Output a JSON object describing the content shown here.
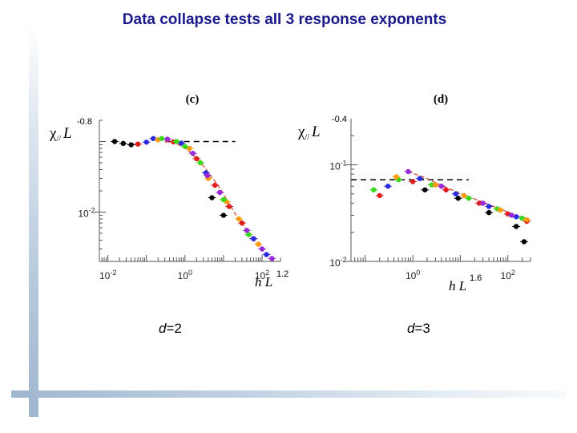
{
  "slide": {
    "title": "Data collapse tests all 3 response exponents",
    "captions": [
      {
        "var": "d",
        "rest": "=2"
      },
      {
        "var": "d",
        "rest": "=3"
      }
    ]
  },
  "chart_data": [
    {
      "type": "scatter",
      "panel_label": "(c)",
      "ylabel": "χ// L-0.8",
      "xlabel": "h L1.2",
      "x_scale": "log",
      "y_scale": "log",
      "xlim": [
        0.006,
        300
      ],
      "ylim": [
        0.002,
        0.2
      ],
      "x_ticks": [
        {
          "value": 0.01,
          "label": "10-2"
        },
        {
          "value": 1,
          "label": "100"
        },
        {
          "value": 100,
          "label": "102"
        }
      ],
      "y_ticks": [
        {
          "value": 0.01,
          "label": "10-2"
        }
      ],
      "reference_line": {
        "y": 0.1,
        "x": [
          0.3,
          20
        ],
        "style": "dashed"
      },
      "fit_curve": {
        "color": "#d04a3a",
        "points": [
          [
            0.3,
            0.1
          ],
          [
            0.6,
            0.094
          ],
          [
            1.2,
            0.075
          ],
          [
            3,
            0.045
          ],
          [
            8,
            0.022
          ],
          [
            20,
            0.0095
          ],
          [
            60,
            0.004
          ],
          [
            180,
            0.0022
          ]
        ]
      },
      "series": [
        {
          "color": "#000000",
          "points": [
            [
              0.015,
              0.1
            ],
            [
              0.025,
              0.094
            ],
            [
              0.04,
              0.09
            ],
            [
              5,
              0.016
            ],
            [
              10,
              0.009
            ]
          ]
        },
        {
          "color": "#e01b1b",
          "points": [
            [
              0.06,
              0.092
            ],
            [
              0.5,
              0.099
            ],
            [
              2,
              0.057
            ],
            [
              6,
              0.024
            ],
            [
              14,
              0.012
            ],
            [
              30,
              0.007
            ],
            [
              60,
              0.0042
            ]
          ]
        },
        {
          "color": "#2a2ae0",
          "points": [
            [
              0.1,
              0.098
            ],
            [
              0.15,
              0.11
            ],
            [
              0.8,
              0.095
            ],
            [
              3.5,
              0.036
            ],
            [
              60,
              0.0042
            ],
            [
              130,
              0.0025
            ]
          ]
        },
        {
          "color": "#ff9a10",
          "points": [
            [
              0.2,
              0.106
            ],
            [
              1.3,
              0.08
            ],
            [
              4,
              0.03
            ],
            [
              12,
              0.014
            ],
            [
              25,
              0.008
            ],
            [
              80,
              0.0035
            ]
          ]
        },
        {
          "color": "#3ad81a",
          "points": [
            [
              0.25,
              0.11
            ],
            [
              0.6,
              0.1
            ],
            [
              1,
              0.085
            ],
            [
              2.5,
              0.05
            ],
            [
              10,
              0.015
            ],
            [
              45,
              0.0048
            ]
          ]
        },
        {
          "color": "#9a2ad8",
          "points": [
            [
              0.35,
              0.108
            ],
            [
              1.6,
              0.068
            ],
            [
              3.8,
              0.033
            ],
            [
              8,
              0.019
            ],
            [
              40,
              0.0055
            ],
            [
              100,
              0.003
            ],
            [
              180,
              0.0022
            ]
          ]
        }
      ]
    },
    {
      "type": "scatter",
      "panel_label": "(d)",
      "ylabel": "χ// L-0.4",
      "xlabel": "h L1.6",
      "x_scale": "log",
      "y_scale": "log",
      "xlim": [
        0.05,
        300
      ],
      "ylim": [
        0.01,
        0.3
      ],
      "x_ticks": [
        {
          "value": 1,
          "label": "100"
        },
        {
          "value": 100,
          "label": "102"
        }
      ],
      "y_ticks": [
        {
          "value": 0.1,
          "label": "10-1"
        },
        {
          "value": 0.01,
          "label": "10-2"
        }
      ],
      "reference_line": {
        "y": 0.07,
        "x": [
          0.05,
          15
        ],
        "style": "dashed"
      },
      "fit_curve": {
        "color": "#d04a3a",
        "points": [
          [
            0.8,
            0.085
          ],
          [
            2,
            0.072
          ],
          [
            5,
            0.058
          ],
          [
            15,
            0.047
          ],
          [
            50,
            0.037
          ],
          [
            150,
            0.03
          ],
          [
            280,
            0.027
          ]
        ]
      },
      "series": [
        {
          "color": "#3ad81a",
          "points": [
            [
              0.15,
              0.055
            ],
            [
              0.5,
              0.07
            ],
            [
              2.5,
              0.062
            ],
            [
              15,
              0.045
            ],
            [
              60,
              0.035
            ],
            [
              200,
              0.028
            ]
          ]
        },
        {
          "color": "#e01b1b",
          "points": [
            [
              0.2,
              0.048
            ],
            [
              1,
              0.067
            ],
            [
              5,
              0.055
            ],
            [
              25,
              0.04
            ],
            [
              100,
              0.031
            ],
            [
              250,
              0.026
            ]
          ]
        },
        {
          "color": "#2a2ae0",
          "points": [
            [
              0.3,
              0.06
            ],
            [
              1.4,
              0.072
            ],
            [
              8,
              0.05
            ],
            [
              40,
              0.037
            ],
            [
              150,
              0.029
            ]
          ]
        },
        {
          "color": "#ff9a10",
          "points": [
            [
              0.45,
              0.075
            ],
            [
              3,
              0.062
            ],
            [
              12,
              0.048
            ],
            [
              70,
              0.034
            ],
            [
              250,
              0.027
            ]
          ]
        },
        {
          "color": "#9a2ad8",
          "points": [
            [
              0.8,
              0.085
            ],
            [
              4,
              0.06
            ],
            [
              30,
              0.04
            ],
            [
              120,
              0.03
            ]
          ]
        },
        {
          "color": "#000000",
          "points": [
            [
              1.8,
              0.055
            ],
            [
              9,
              0.045
            ],
            [
              40,
              0.032
            ],
            [
              150,
              0.023
            ],
            [
              220,
              0.016
            ]
          ]
        }
      ]
    }
  ]
}
